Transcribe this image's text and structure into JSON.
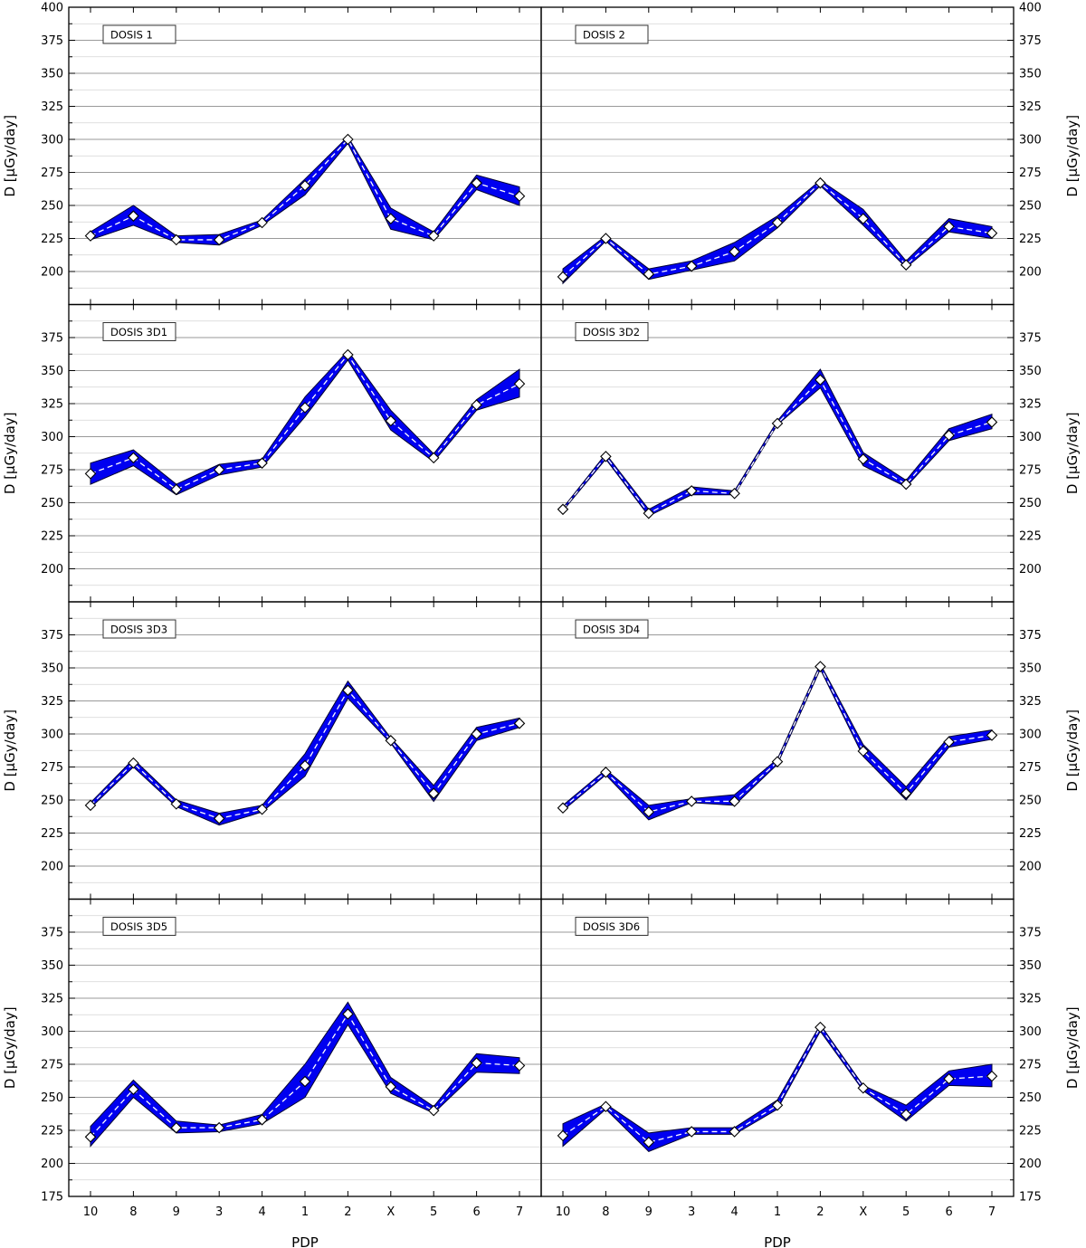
{
  "figure": {
    "xlabel": "PDP",
    "ylabel": "D [µGy/day]",
    "colors": {
      "band": "#0000f0",
      "band_edge": "#000030",
      "mean_line": "#ffffff",
      "marker_fill": "#ffffff",
      "marker_edge": "#000000",
      "major_grid": "#9a9a9a",
      "minor_grid": "#d4d4d4"
    }
  },
  "chart_data": [
    {
      "type": "line",
      "title": "DOSIS 1",
      "categories": [
        "10",
        "8",
        "9",
        "3",
        "4",
        "1",
        "2",
        "X",
        "5",
        "6",
        "7"
      ],
      "ylim": [
        175,
        400
      ],
      "yticks": [
        200,
        225,
        250,
        275,
        300,
        325,
        350,
        375,
        400
      ],
      "values": [
        227,
        242,
        224,
        224,
        237,
        265,
        300,
        240,
        227,
        267,
        257
      ],
      "lower": [
        224,
        235,
        222,
        220,
        235,
        258,
        297,
        232,
        224,
        262,
        250
      ],
      "upper": [
        230,
        250,
        227,
        228,
        239,
        270,
        302,
        248,
        230,
        273,
        264
      ]
    },
    {
      "type": "line",
      "title": "DOSIS 2",
      "categories": [
        "10",
        "8",
        "9",
        "3",
        "4",
        "1",
        "2",
        "X",
        "5",
        "6",
        "7"
      ],
      "ylim": [
        175,
        400
      ],
      "yticks": [
        200,
        225,
        250,
        275,
        300,
        325,
        350,
        375,
        400
      ],
      "values": [
        196,
        225,
        198,
        204,
        215,
        237,
        267,
        240,
        205,
        234,
        229
      ],
      "lower": [
        191,
        223,
        194,
        201,
        208,
        233,
        265,
        235,
        203,
        230,
        225
      ],
      "upper": [
        202,
        227,
        202,
        208,
        222,
        242,
        269,
        247,
        208,
        240,
        234
      ]
    },
    {
      "type": "line",
      "title": "DOSIS 3D1",
      "categories": [
        "10",
        "8",
        "9",
        "3",
        "4",
        "1",
        "2",
        "X",
        "5",
        "6",
        "7"
      ],
      "ylim": [
        175,
        400
      ],
      "yticks": [
        200,
        225,
        250,
        275,
        300,
        325,
        350,
        375
      ],
      "values": [
        272,
        284,
        260,
        275,
        280,
        322,
        362,
        312,
        284,
        324,
        340
      ],
      "lower": [
        264,
        278,
        256,
        271,
        277,
        315,
        358,
        305,
        281,
        320,
        330
      ],
      "upper": [
        280,
        290,
        264,
        279,
        283,
        330,
        365,
        320,
        287,
        328,
        351
      ]
    },
    {
      "type": "line",
      "title": "DOSIS 3D2",
      "categories": [
        "10",
        "8",
        "9",
        "3",
        "4",
        "1",
        "2",
        "X",
        "5",
        "6",
        "7"
      ],
      "ylim": [
        175,
        400
      ],
      "yticks": [
        200,
        225,
        250,
        275,
        300,
        325,
        350,
        375
      ],
      "values": [
        245,
        285,
        242,
        259,
        257,
        310,
        343,
        283,
        264,
        301,
        311
      ],
      "lower": [
        244,
        283,
        240,
        256,
        256,
        309,
        337,
        278,
        262,
        297,
        306
      ],
      "upper": [
        246,
        287,
        245,
        262,
        259,
        312,
        351,
        288,
        267,
        306,
        317
      ]
    },
    {
      "type": "line",
      "title": "DOSIS 3D3",
      "categories": [
        "10",
        "8",
        "9",
        "3",
        "4",
        "1",
        "2",
        "X",
        "5",
        "6",
        "7"
      ],
      "ylim": [
        175,
        400
      ],
      "yticks": [
        200,
        225,
        250,
        275,
        300,
        325,
        350,
        375
      ],
      "values": [
        246,
        278,
        247,
        236,
        243,
        276,
        333,
        295,
        255,
        300,
        308
      ],
      "lower": [
        244,
        275,
        245,
        231,
        241,
        268,
        327,
        293,
        249,
        295,
        305
      ],
      "upper": [
        248,
        281,
        250,
        240,
        246,
        285,
        340,
        297,
        261,
        305,
        312
      ]
    },
    {
      "type": "line",
      "title": "DOSIS 3D4",
      "categories": [
        "10",
        "8",
        "9",
        "3",
        "4",
        "1",
        "2",
        "X",
        "5",
        "6",
        "7"
      ],
      "ylim": [
        175,
        400
      ],
      "yticks": [
        200,
        225,
        250,
        275,
        300,
        325,
        350,
        375
      ],
      "values": [
        244,
        271,
        241,
        249,
        249,
        279,
        351,
        287,
        255,
        294,
        299
      ],
      "lower": [
        242,
        269,
        235,
        248,
        246,
        277,
        349,
        283,
        250,
        290,
        296
      ],
      "upper": [
        246,
        273,
        246,
        251,
        254,
        281,
        353,
        292,
        260,
        298,
        303
      ]
    },
    {
      "type": "line",
      "title": "DOSIS 3D5",
      "categories": [
        "10",
        "8",
        "9",
        "3",
        "4",
        "1",
        "2",
        "X",
        "5",
        "6",
        "7"
      ],
      "ylim": [
        175,
        400
      ],
      "yticks": [
        175,
        200,
        225,
        250,
        275,
        300,
        325,
        350,
        375
      ],
      "values": [
        220,
        256,
        227,
        227,
        233,
        262,
        313,
        258,
        240,
        276,
        274
      ],
      "lower": [
        213,
        250,
        223,
        224,
        230,
        250,
        305,
        253,
        238,
        269,
        268
      ],
      "upper": [
        228,
        263,
        232,
        229,
        237,
        275,
        322,
        265,
        243,
        283,
        280
      ]
    },
    {
      "type": "line",
      "title": "DOSIS 3D6",
      "categories": [
        "10",
        "8",
        "9",
        "3",
        "4",
        "1",
        "2",
        "X",
        "5",
        "6",
        "7"
      ],
      "ylim": [
        175,
        400
      ],
      "yticks": [
        175,
        200,
        225,
        250,
        275,
        300,
        325,
        350,
        375
      ],
      "values": [
        221,
        243,
        216,
        224,
        224,
        244,
        303,
        257,
        237,
        264,
        266
      ],
      "lower": [
        213,
        241,
        209,
        222,
        222,
        241,
        300,
        255,
        232,
        259,
        258
      ],
      "upper": [
        230,
        245,
        223,
        227,
        227,
        248,
        305,
        259,
        244,
        270,
        275
      ]
    }
  ]
}
